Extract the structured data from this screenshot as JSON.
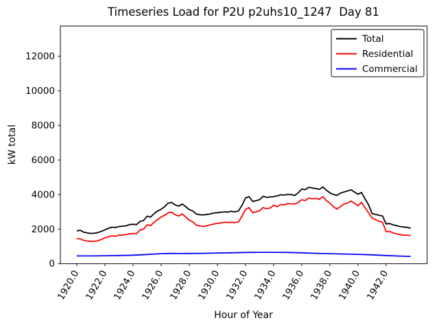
{
  "figure": {
    "title": "Timeseries Load for P2U p2uhs10_1247  Day 81",
    "xlabel": "Hour of Year",
    "ylabel": "kW total"
  },
  "chart_data": {
    "type": "line",
    "title": "Timeseries Load for P2U p2uhs10_1247  Day 81",
    "xlabel": "Hour of Year",
    "ylabel": "kW total",
    "xlim": [
      1918.83,
      1944.92
    ],
    "ylim": [
      0,
      13750
    ],
    "xticks": [
      1920.0,
      1922.0,
      1924.0,
      1926.0,
      1928.0,
      1930.0,
      1932.0,
      1934.0,
      1936.0,
      1938.0,
      1940.0,
      1942.0
    ],
    "xtick_labels": [
      "1920.0",
      "1922.0",
      "1924.0",
      "1926.0",
      "1928.0",
      "1930.0",
      "1932.0",
      "1934.0",
      "1936.0",
      "1938.0",
      "1940.0",
      "1942.0"
    ],
    "yticks": [
      0,
      2000,
      4000,
      6000,
      8000,
      10000,
      12000
    ],
    "ytick_labels": [
      "0",
      "2000",
      "4000",
      "6000",
      "8000",
      "10000",
      "12000"
    ],
    "xtick_rotation": 60,
    "grid": false,
    "legend_position": "upper right",
    "legend_entries": [
      "Total",
      "Residential",
      "Commercial"
    ],
    "series": [
      {
        "name": "Total",
        "color": "#000000",
        "points": [
          [
            1920.0,
            1900
          ],
          [
            1920.25,
            1930
          ],
          [
            1920.5,
            1820
          ],
          [
            1920.75,
            1780
          ],
          [
            1921.0,
            1750
          ],
          [
            1921.25,
            1760
          ],
          [
            1921.5,
            1800
          ],
          [
            1921.75,
            1870
          ],
          [
            1922.0,
            1960
          ],
          [
            1922.25,
            2050
          ],
          [
            1922.5,
            2110
          ],
          [
            1922.75,
            2090
          ],
          [
            1923.0,
            2150
          ],
          [
            1923.25,
            2170
          ],
          [
            1923.5,
            2190
          ],
          [
            1923.75,
            2260
          ],
          [
            1924.0,
            2280
          ],
          [
            1924.25,
            2260
          ],
          [
            1924.5,
            2450
          ],
          [
            1924.75,
            2500
          ],
          [
            1925.0,
            2750
          ],
          [
            1925.25,
            2700
          ],
          [
            1925.5,
            2900
          ],
          [
            1925.75,
            3050
          ],
          [
            1926.0,
            3150
          ],
          [
            1926.25,
            3300
          ],
          [
            1926.5,
            3500
          ],
          [
            1926.75,
            3550
          ],
          [
            1927.0,
            3400
          ],
          [
            1927.25,
            3330
          ],
          [
            1927.5,
            3450
          ],
          [
            1927.75,
            3300
          ],
          [
            1928.0,
            3130
          ],
          [
            1928.25,
            3050
          ],
          [
            1928.5,
            2870
          ],
          [
            1928.75,
            2830
          ],
          [
            1929.0,
            2820
          ],
          [
            1929.25,
            2850
          ],
          [
            1929.5,
            2880
          ],
          [
            1929.75,
            2930
          ],
          [
            1930.0,
            2950
          ],
          [
            1930.25,
            2980
          ],
          [
            1930.5,
            3000
          ],
          [
            1930.75,
            2990
          ],
          [
            1931.0,
            3030
          ],
          [
            1931.25,
            3000
          ],
          [
            1931.5,
            3050
          ],
          [
            1931.75,
            3380
          ],
          [
            1932.0,
            3800
          ],
          [
            1932.25,
            3880
          ],
          [
            1932.5,
            3600
          ],
          [
            1932.75,
            3650
          ],
          [
            1933.0,
            3700
          ],
          [
            1933.25,
            3900
          ],
          [
            1933.5,
            3840
          ],
          [
            1933.75,
            3860
          ],
          [
            1934.0,
            3880
          ],
          [
            1934.25,
            3920
          ],
          [
            1934.5,
            3990
          ],
          [
            1934.75,
            3970
          ],
          [
            1935.0,
            4010
          ],
          [
            1935.25,
            4000
          ],
          [
            1935.5,
            3950
          ],
          [
            1935.75,
            4100
          ],
          [
            1936.0,
            4320
          ],
          [
            1936.25,
            4280
          ],
          [
            1936.5,
            4420
          ],
          [
            1936.75,
            4380
          ],
          [
            1937.0,
            4350
          ],
          [
            1937.25,
            4300
          ],
          [
            1937.5,
            4440
          ],
          [
            1937.75,
            4250
          ],
          [
            1938.0,
            4100
          ],
          [
            1938.25,
            4000
          ],
          [
            1938.5,
            3950
          ],
          [
            1938.75,
            4080
          ],
          [
            1939.0,
            4150
          ],
          [
            1939.25,
            4200
          ],
          [
            1939.5,
            4280
          ],
          [
            1939.75,
            4150
          ],
          [
            1940.0,
            4020
          ],
          [
            1940.25,
            4120
          ],
          [
            1940.5,
            3750
          ],
          [
            1940.75,
            3420
          ],
          [
            1941.0,
            2900
          ],
          [
            1941.25,
            2850
          ],
          [
            1941.5,
            2800
          ],
          [
            1941.75,
            2760
          ],
          [
            1942.0,
            2300
          ],
          [
            1942.25,
            2320
          ],
          [
            1942.5,
            2250
          ],
          [
            1942.75,
            2200
          ],
          [
            1943.0,
            2150
          ],
          [
            1943.25,
            2120
          ],
          [
            1943.5,
            2100
          ],
          [
            1943.75,
            2050
          ]
        ]
      },
      {
        "name": "Residential",
        "color": "#ff0000",
        "points": [
          [
            1920.0,
            1450
          ],
          [
            1920.25,
            1430
          ],
          [
            1920.5,
            1350
          ],
          [
            1920.75,
            1310
          ],
          [
            1921.0,
            1280
          ],
          [
            1921.25,
            1290
          ],
          [
            1921.5,
            1330
          ],
          [
            1921.75,
            1400
          ],
          [
            1922.0,
            1500
          ],
          [
            1922.25,
            1560
          ],
          [
            1922.5,
            1610
          ],
          [
            1922.75,
            1590
          ],
          [
            1923.0,
            1650
          ],
          [
            1923.25,
            1660
          ],
          [
            1923.5,
            1680
          ],
          [
            1923.75,
            1730
          ],
          [
            1924.0,
            1750
          ],
          [
            1924.25,
            1740
          ],
          [
            1924.5,
            1950
          ],
          [
            1924.75,
            2000
          ],
          [
            1925.0,
            2250
          ],
          [
            1925.25,
            2200
          ],
          [
            1925.5,
            2400
          ],
          [
            1925.75,
            2550
          ],
          [
            1926.0,
            2700
          ],
          [
            1926.25,
            2800
          ],
          [
            1926.5,
            2950
          ],
          [
            1926.75,
            2980
          ],
          [
            1927.0,
            2830
          ],
          [
            1927.25,
            2760
          ],
          [
            1927.5,
            2880
          ],
          [
            1927.75,
            2700
          ],
          [
            1928.0,
            2520
          ],
          [
            1928.25,
            2420
          ],
          [
            1928.5,
            2230
          ],
          [
            1928.75,
            2180
          ],
          [
            1929.0,
            2150
          ],
          [
            1929.25,
            2200
          ],
          [
            1929.5,
            2250
          ],
          [
            1929.75,
            2300
          ],
          [
            1930.0,
            2330
          ],
          [
            1930.25,
            2360
          ],
          [
            1930.5,
            2400
          ],
          [
            1930.75,
            2380
          ],
          [
            1931.0,
            2400
          ],
          [
            1931.25,
            2370
          ],
          [
            1931.5,
            2420
          ],
          [
            1931.75,
            2750
          ],
          [
            1932.0,
            3130
          ],
          [
            1932.25,
            3250
          ],
          [
            1932.5,
            2950
          ],
          [
            1932.75,
            3000
          ],
          [
            1933.0,
            3060
          ],
          [
            1933.25,
            3250
          ],
          [
            1933.5,
            3180
          ],
          [
            1933.75,
            3220
          ],
          [
            1934.0,
            3380
          ],
          [
            1934.25,
            3300
          ],
          [
            1934.5,
            3420
          ],
          [
            1934.75,
            3400
          ],
          [
            1935.0,
            3480
          ],
          [
            1935.25,
            3460
          ],
          [
            1935.5,
            3450
          ],
          [
            1935.75,
            3550
          ],
          [
            1936.0,
            3700
          ],
          [
            1936.25,
            3650
          ],
          [
            1936.5,
            3800
          ],
          [
            1936.75,
            3760
          ],
          [
            1937.0,
            3780
          ],
          [
            1937.25,
            3720
          ],
          [
            1937.5,
            3880
          ],
          [
            1937.75,
            3650
          ],
          [
            1938.0,
            3500
          ],
          [
            1938.25,
            3300
          ],
          [
            1938.5,
            3160
          ],
          [
            1938.75,
            3300
          ],
          [
            1939.0,
            3450
          ],
          [
            1939.25,
            3500
          ],
          [
            1939.5,
            3620
          ],
          [
            1939.75,
            3500
          ],
          [
            1940.0,
            3350
          ],
          [
            1940.25,
            3550
          ],
          [
            1940.5,
            3250
          ],
          [
            1940.75,
            2950
          ],
          [
            1941.0,
            2650
          ],
          [
            1941.25,
            2550
          ],
          [
            1941.5,
            2450
          ],
          [
            1941.75,
            2400
          ],
          [
            1942.0,
            1850
          ],
          [
            1942.25,
            1870
          ],
          [
            1942.5,
            1780
          ],
          [
            1942.75,
            1720
          ],
          [
            1943.0,
            1680
          ],
          [
            1943.25,
            1650
          ],
          [
            1943.5,
            1650
          ],
          [
            1943.75,
            1620
          ]
        ]
      },
      {
        "name": "Commercial",
        "color": "#0000ff",
        "points": [
          [
            1920.0,
            450
          ],
          [
            1921.0,
            450
          ],
          [
            1922.0,
            460
          ],
          [
            1923.0,
            470
          ],
          [
            1924.0,
            490
          ],
          [
            1924.5,
            510
          ],
          [
            1925.0,
            530
          ],
          [
            1925.5,
            560
          ],
          [
            1926.0,
            580
          ],
          [
            1926.5,
            590
          ],
          [
            1927.0,
            590
          ],
          [
            1927.5,
            585
          ],
          [
            1928.0,
            590
          ],
          [
            1929.0,
            600
          ],
          [
            1930.0,
            620
          ],
          [
            1931.0,
            630
          ],
          [
            1932.0,
            650
          ],
          [
            1932.5,
            655
          ],
          [
            1933.0,
            660
          ],
          [
            1934.0,
            660
          ],
          [
            1935.0,
            650
          ],
          [
            1936.0,
            630
          ],
          [
            1937.0,
            600
          ],
          [
            1938.0,
            580
          ],
          [
            1939.0,
            560
          ],
          [
            1940.0,
            540
          ],
          [
            1941.0,
            510
          ],
          [
            1942.0,
            470
          ],
          [
            1943.0,
            440
          ],
          [
            1943.75,
            420
          ]
        ]
      }
    ]
  }
}
